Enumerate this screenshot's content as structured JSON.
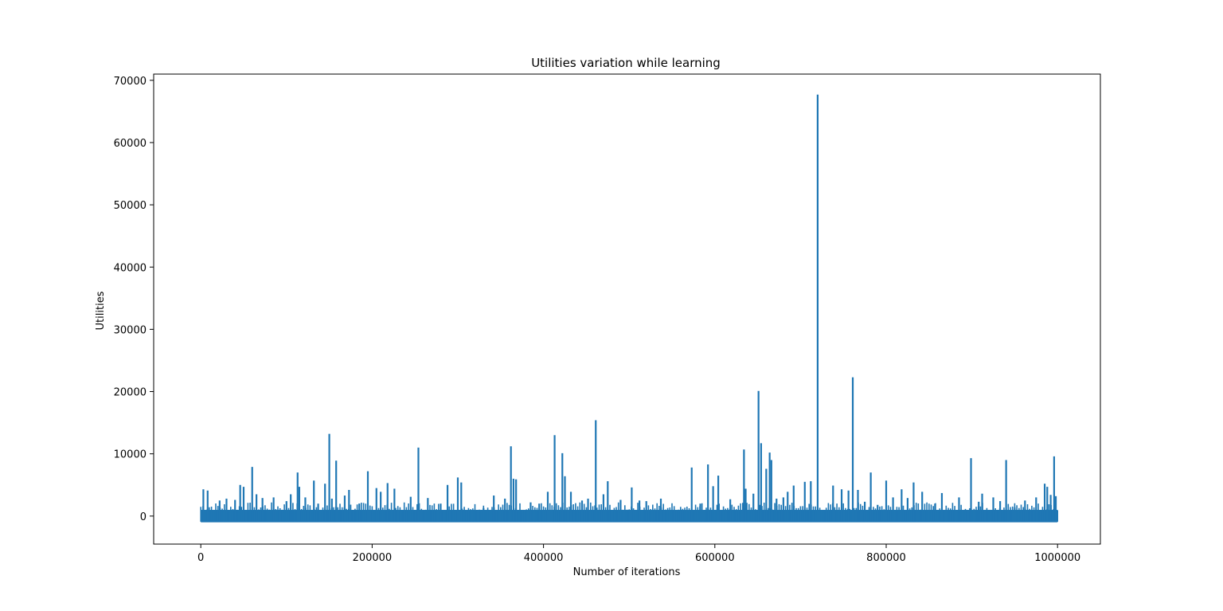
{
  "chart_data": {
    "type": "line",
    "title": "Utilities variation while learning",
    "xlabel": "Number of iterations",
    "ylabel": "Utilities",
    "xlim": [
      -55000,
      1050000
    ],
    "ylim": [
      -4500,
      71000
    ],
    "x_ticks": [
      0,
      200000,
      400000,
      600000,
      800000,
      1000000
    ],
    "y_ticks": [
      0,
      10000,
      20000,
      30000,
      40000,
      50000,
      60000,
      70000
    ],
    "grid": false,
    "color": "#1f77b4",
    "baseline": {
      "low": -1000,
      "high": 1000
    },
    "spikes": [
      [
        3000,
        4300
      ],
      [
        8000,
        4100
      ],
      [
        22000,
        2500
      ],
      [
        30000,
        2800
      ],
      [
        40000,
        2600
      ],
      [
        46000,
        5000
      ],
      [
        50000,
        4700
      ],
      [
        60000,
        7900
      ],
      [
        65000,
        3500
      ],
      [
        72000,
        2900
      ],
      [
        85000,
        3000
      ],
      [
        100000,
        2400
      ],
      [
        105000,
        3500
      ],
      [
        113000,
        7000
      ],
      [
        115000,
        4700
      ],
      [
        122000,
        3000
      ],
      [
        132000,
        5700
      ],
      [
        137000,
        2000
      ],
      [
        145000,
        5200
      ],
      [
        150000,
        13200
      ],
      [
        153000,
        2800
      ],
      [
        158000,
        8900
      ],
      [
        168000,
        3300
      ],
      [
        173000,
        4200
      ],
      [
        185000,
        2000
      ],
      [
        195000,
        7200
      ],
      [
        205000,
        4500
      ],
      [
        210000,
        3900
      ],
      [
        218000,
        5300
      ],
      [
        226000,
        4400
      ],
      [
        245000,
        3100
      ],
      [
        254000,
        11000
      ],
      [
        265000,
        2900
      ],
      [
        280000,
        2000
      ],
      [
        288000,
        5000
      ],
      [
        300000,
        6200
      ],
      [
        304000,
        5400
      ],
      [
        330000,
        1300
      ],
      [
        342000,
        3300
      ],
      [
        355000,
        2800
      ],
      [
        362000,
        11200
      ],
      [
        365000,
        6000
      ],
      [
        368000,
        5900
      ],
      [
        385000,
        2200
      ],
      [
        395000,
        2000
      ],
      [
        405000,
        3900
      ],
      [
        413000,
        13000
      ],
      [
        422000,
        10100
      ],
      [
        425000,
        6400
      ],
      [
        432000,
        3900
      ],
      [
        445000,
        2500
      ],
      [
        452000,
        2800
      ],
      [
        461000,
        15400
      ],
      [
        470000,
        3500
      ],
      [
        475000,
        5600
      ],
      [
        490000,
        2600
      ],
      [
        503000,
        4600
      ],
      [
        512000,
        2500
      ],
      [
        520000,
        2400
      ],
      [
        537000,
        2800
      ],
      [
        560000,
        1000
      ],
      [
        573000,
        7800
      ],
      [
        583000,
        2000
      ],
      [
        592000,
        8300
      ],
      [
        598000,
        4800
      ],
      [
        604000,
        6500
      ],
      [
        618000,
        2700
      ],
      [
        634000,
        10700
      ],
      [
        636000,
        4400
      ],
      [
        645000,
        3600
      ],
      [
        651000,
        20100
      ],
      [
        654000,
        11700
      ],
      [
        660000,
        7600
      ],
      [
        664000,
        10200
      ],
      [
        666000,
        9000
      ],
      [
        672000,
        2800
      ],
      [
        680000,
        3000
      ],
      [
        685000,
        3900
      ],
      [
        692000,
        4900
      ],
      [
        705000,
        5500
      ],
      [
        712000,
        5600
      ],
      [
        720000,
        67700
      ],
      [
        738000,
        4900
      ],
      [
        748000,
        4300
      ],
      [
        756000,
        4100
      ],
      [
        761000,
        22300
      ],
      [
        767000,
        4200
      ],
      [
        775000,
        2300
      ],
      [
        782000,
        7000
      ],
      [
        790000,
        1800
      ],
      [
        800000,
        5700
      ],
      [
        808000,
        3000
      ],
      [
        818000,
        4300
      ],
      [
        825000,
        2900
      ],
      [
        832000,
        5400
      ],
      [
        842000,
        3900
      ],
      [
        857000,
        2000
      ],
      [
        865000,
        3700
      ],
      [
        885000,
        3000
      ],
      [
        899000,
        9300
      ],
      [
        908000,
        2300
      ],
      [
        912000,
        3600
      ],
      [
        925000,
        3000
      ],
      [
        933000,
        2400
      ],
      [
        940000,
        9000
      ],
      [
        950000,
        1400
      ],
      [
        962000,
        2500
      ],
      [
        975000,
        3000
      ],
      [
        985000,
        5200
      ],
      [
        988000,
        4700
      ],
      [
        992000,
        3400
      ],
      [
        996000,
        9600
      ],
      [
        998000,
        3200
      ]
    ]
  }
}
